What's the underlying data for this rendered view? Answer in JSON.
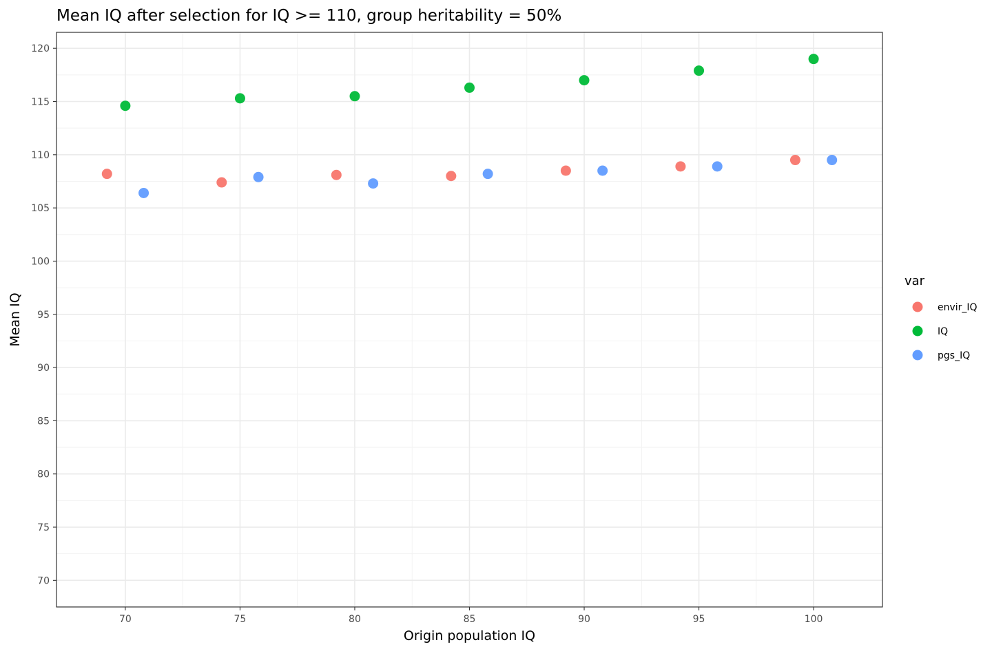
{
  "chart_data": {
    "type": "scatter",
    "title": "Mean IQ after selection for IQ >= 110, group heritability = 50%",
    "xlabel": "Origin population IQ",
    "ylabel": "Mean IQ",
    "xlim": [
      67,
      103
    ],
    "ylim": [
      67.5,
      121.5
    ],
    "x_ticks": [
      70,
      75,
      80,
      85,
      90,
      95,
      100
    ],
    "y_ticks": [
      70,
      75,
      80,
      85,
      90,
      95,
      100,
      105,
      110,
      115,
      120
    ],
    "grid": true,
    "legend": {
      "title": "var",
      "position": "right"
    },
    "series": [
      {
        "name": "envir_IQ",
        "color": "#F8766D",
        "points": [
          {
            "x": 69.2,
            "y": 108.2
          },
          {
            "x": 74.2,
            "y": 107.4
          },
          {
            "x": 79.2,
            "y": 108.1
          },
          {
            "x": 84.2,
            "y": 108.0
          },
          {
            "x": 89.2,
            "y": 108.5
          },
          {
            "x": 94.2,
            "y": 108.9
          },
          {
            "x": 99.2,
            "y": 109.5
          }
        ]
      },
      {
        "name": "IQ",
        "color": "#00BA38",
        "points": [
          {
            "x": 70.0,
            "y": 114.6
          },
          {
            "x": 75.0,
            "y": 115.3
          },
          {
            "x": 80.0,
            "y": 115.5
          },
          {
            "x": 85.0,
            "y": 116.3
          },
          {
            "x": 90.0,
            "y": 117.0
          },
          {
            "x": 95.0,
            "y": 117.9
          },
          {
            "x": 100.0,
            "y": 119.0
          }
        ]
      },
      {
        "name": "pgs_IQ",
        "color": "#619CFF",
        "points": [
          {
            "x": 70.8,
            "y": 106.4
          },
          {
            "x": 75.8,
            "y": 107.9
          },
          {
            "x": 80.8,
            "y": 107.3
          },
          {
            "x": 85.8,
            "y": 108.2
          },
          {
            "x": 90.8,
            "y": 108.5
          },
          {
            "x": 95.8,
            "y": 108.9
          },
          {
            "x": 100.8,
            "y": 109.5
          }
        ]
      }
    ]
  }
}
